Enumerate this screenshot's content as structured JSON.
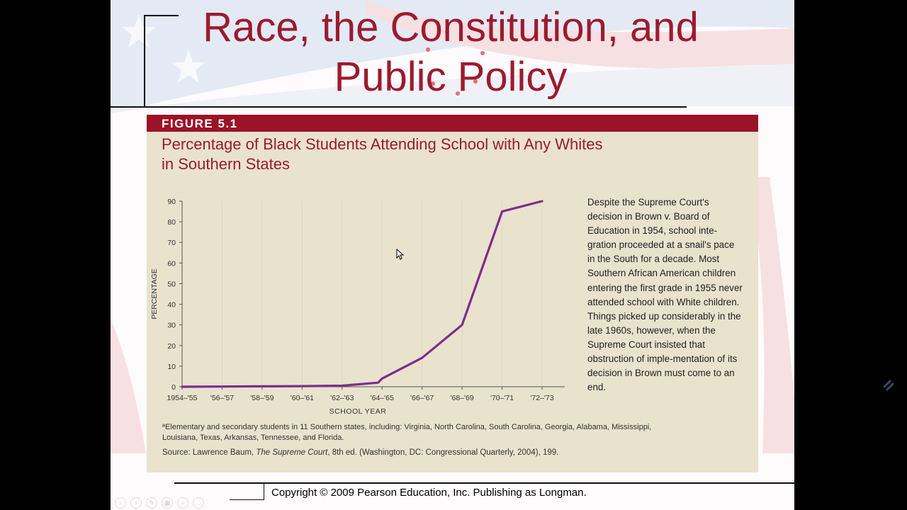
{
  "slide": {
    "title_line1": "Race, the Constitution, and",
    "title_line2": "Public Policy",
    "copyright": "Copyright © 2009 Pearson Education, Inc. Publishing as Longman."
  },
  "figure": {
    "label": "FIGURE 5.1",
    "title_line1": "Percentage of Black Students Attending School with Any Whites",
    "title_line2": "in Southern States",
    "caption": "Despite the Supreme Court's decision in Brown v. Board of Education in 1954, school inte-gration proceeded at a snail's pace in the South for a decade. Most Southern African American children entering the first grade in 1955 never attended school with White children. Things picked up considerably in the late 1960s, however, when the Supreme Court insisted that obstruction of imple-mentation of its decision in Brown must come to an end.",
    "footnote": "ªElementary and secondary students in 11 Southern states, including: Virginia, North Carolina, South Carolina, Georgia, Alabama, Mississippi, Louisiana, Texas, Arkansas, Tennessee, and Florida.",
    "source_prefix": "Source: Lawrence Baum, ",
    "source_italic": "The Supreme Court",
    "source_suffix": ", 8th ed. (Washington, DC: Congressional Quarterly, 2004), 199."
  },
  "chart_data": {
    "type": "line",
    "xlabel": "SCHOOL YEAR",
    "ylabel": "PERCENTAGE",
    "ylim": [
      0,
      90
    ],
    "yticks": [
      0,
      10,
      20,
      30,
      40,
      50,
      60,
      70,
      80,
      90
    ],
    "categories": [
      "1954–'55",
      "'56–'57",
      "'58–'59",
      "'60–'61",
      "'62–'63",
      "'64–'65",
      "'66–'67",
      "'68–'69",
      "'70–'71",
      "'72–'73"
    ],
    "series": [
      {
        "color": "#7b2d8e",
        "points": [
          [
            0,
            0.001
          ],
          [
            1,
            0.1
          ],
          [
            2,
            0.2
          ],
          [
            3,
            0.3
          ],
          [
            4,
            0.5
          ],
          [
            4.9,
            2
          ],
          [
            5,
            4
          ],
          [
            6,
            14
          ],
          [
            7,
            30
          ],
          [
            8,
            85
          ],
          [
            9,
            90
          ]
        ]
      }
    ],
    "grid": false
  },
  "colors": {
    "title": "#9b1b30",
    "header_bar": "#9a1326",
    "line": "#7b2d8e"
  },
  "toolbar": {
    "icons": [
      "previous-icon",
      "next-icon",
      "pen-icon",
      "slides-icon",
      "zoom-icon",
      "more-icon"
    ]
  }
}
